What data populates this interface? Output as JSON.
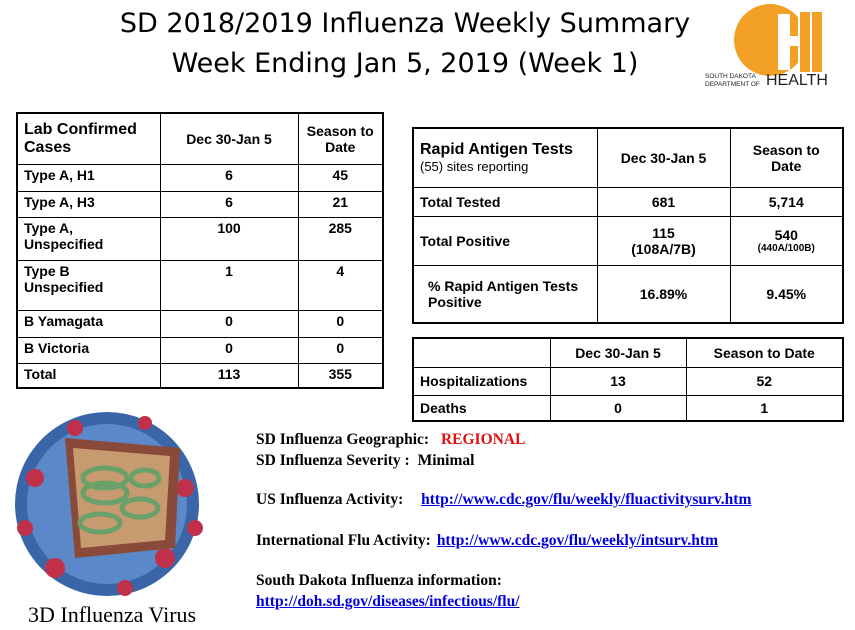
{
  "header": {
    "title_line1": "SD 2018/2019 Influenza Weekly Summary",
    "title_line2": "Week Ending Jan 5, 2019 (Week 1)",
    "logo": {
      "line1": "SOUTH DAKOTA",
      "line2": "DEPARTMENT OF",
      "line3": "HEALTH"
    }
  },
  "lab_table": {
    "header": [
      [
        "Lab Confirmed",
        "Cases"
      ],
      "Dec 30-Jan 5",
      [
        "Season to",
        "Date"
      ]
    ],
    "rows": [
      [
        "Type A, H1",
        6,
        45
      ],
      [
        "Type A, H3",
        6,
        21
      ],
      [
        [
          "Type A,",
          "Unspecified"
        ],
        100,
        285
      ],
      [
        [
          "Type B",
          "Unspecified"
        ],
        1,
        4
      ],
      [
        "B Yamagata",
        0,
        0
      ],
      [
        "B Victoria",
        0,
        0
      ],
      [
        "Total",
        113,
        355
      ]
    ]
  },
  "rapid_table": {
    "header": [
      [
        "Rapid Antigen Tests",
        "(55) sites reporting"
      ],
      "Dec 30-Jan 5",
      [
        "Season to",
        "Date"
      ]
    ],
    "rows": [
      [
        "Total Tested",
        681,
        "5,714"
      ],
      [
        "Total Positive",
        [
          "115",
          "(108A/7B)"
        ],
        [
          "540",
          "(440A/100B)"
        ]
      ],
      [
        [
          "% Rapid Antigen Tests",
          "Positive"
        ],
        "16.89%",
        "9.45%"
      ]
    ]
  },
  "hosp_table": {
    "header": [
      "Dec 30-Jan 5",
      "Season to Date"
    ],
    "rows": [
      [
        "Hospitalizations",
        13,
        52
      ],
      [
        "Deaths",
        0,
        1
      ]
    ]
  },
  "info": {
    "geographic": {
      "label": "SD Influenza Geographic:",
      "value": "REGIONAL"
    },
    "severity": {
      "label": "SD Influenza Severity :",
      "value": "Minimal"
    },
    "us_activity": {
      "label": "US Influenza Activity:",
      "link": "http://www.cdc.gov/flu/weekly/fluactivitysurv.htm"
    },
    "international_activity": {
      "label": "International Flu Activity:",
      "link": "http://www.cdc.gov/flu/weekly/intsurv.htm"
    },
    "sd_information": {
      "label": "South Dakota Influenza information:",
      "link": "http://doh.sd.gov/diseases/infectious/flu/"
    }
  },
  "virus_caption": "3D Influenza Virus"
}
